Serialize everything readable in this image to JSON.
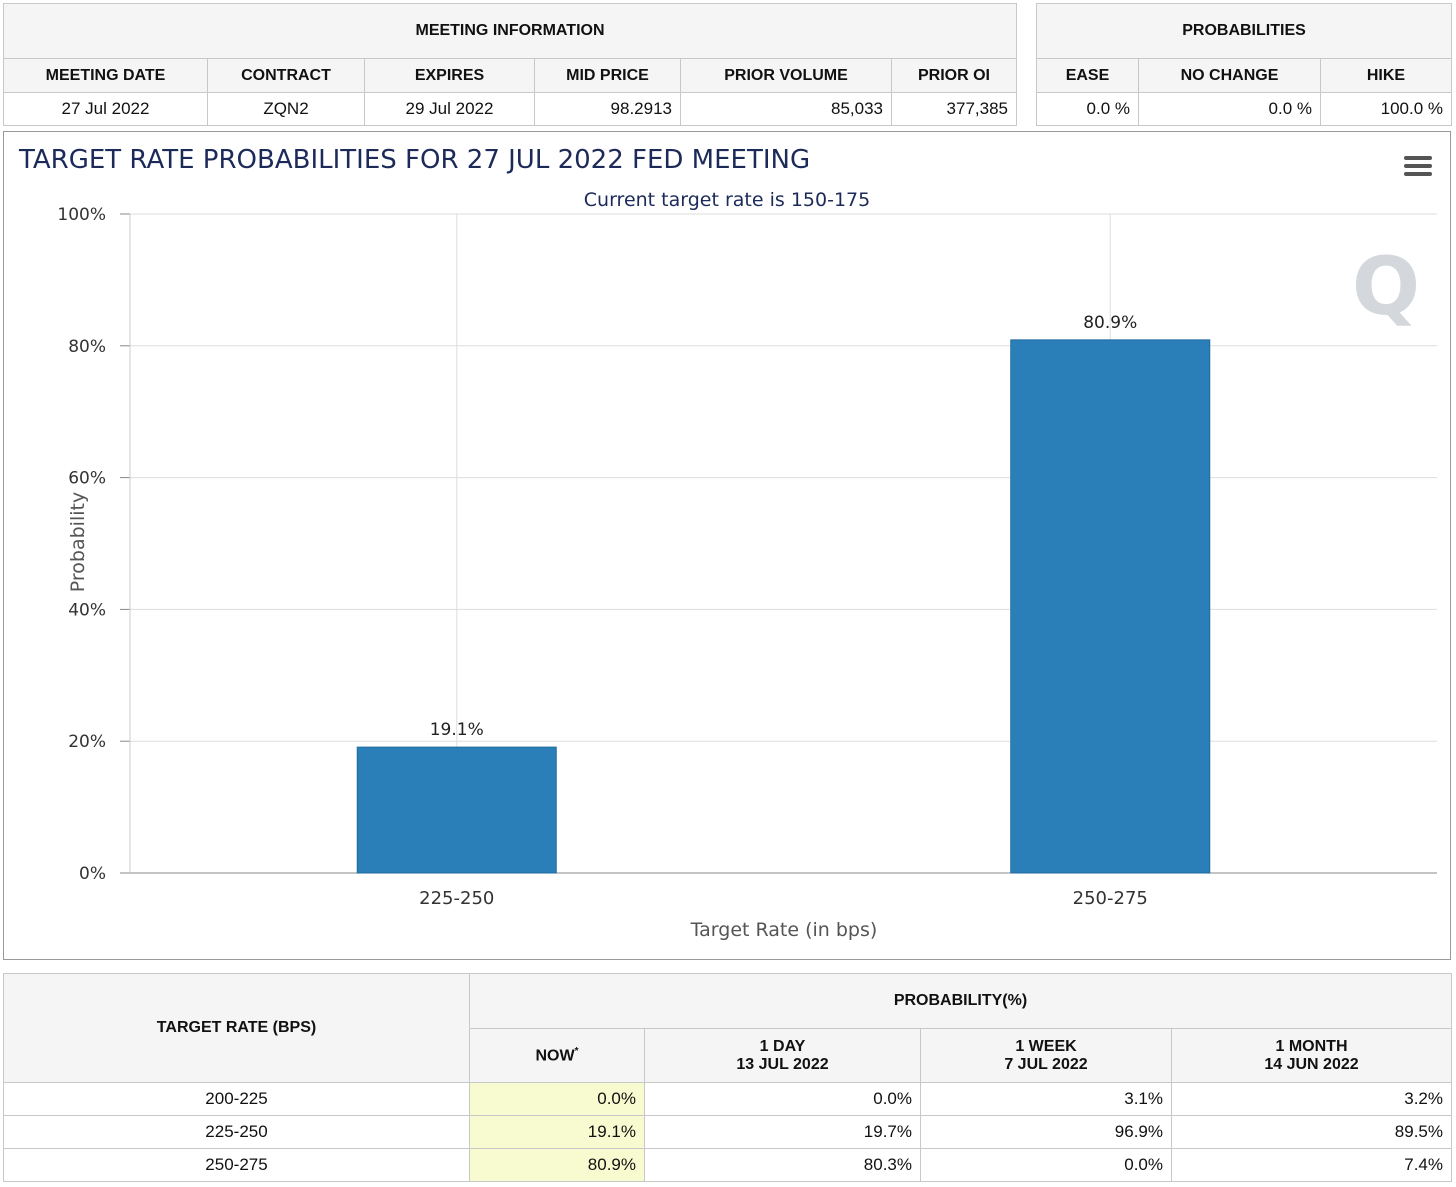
{
  "meeting_info": {
    "title": "MEETING INFORMATION",
    "headers": [
      "MEETING DATE",
      "CONTRACT",
      "EXPIRES",
      "MID PRICE",
      "PRIOR VOLUME",
      "PRIOR OI"
    ],
    "values": [
      "27 Jul 2022",
      "ZQN2",
      "29 Jul 2022",
      "98.2913",
      "85,033",
      "377,385"
    ]
  },
  "probabilities": {
    "title": "PROBABILITIES",
    "headers": [
      "EASE",
      "NO CHANGE",
      "HIKE"
    ],
    "values": [
      "0.0 %",
      "0.0 %",
      "100.0 %"
    ]
  },
  "chart_data": {
    "type": "bar",
    "title": "TARGET RATE PROBABILITIES FOR 27 JUL 2022 FED MEETING",
    "subtitle": "Current target rate is 150-175",
    "categories": [
      "225-250",
      "250-275"
    ],
    "values": [
      19.1,
      80.9
    ],
    "data_labels": [
      "19.1%",
      "80.9%"
    ],
    "xlabel": "Target Rate (in bps)",
    "ylabel": "Probability",
    "ylim": [
      0,
      100
    ],
    "yticks": [
      0,
      20,
      40,
      60,
      80,
      100
    ],
    "ytick_labels": [
      "0%",
      "20%",
      "40%",
      "60%",
      "80%",
      "100%"
    ],
    "grid": true,
    "bar_color": "#2a7fb8",
    "title_color": "#1c2a5a"
  },
  "history": {
    "rate_header": "TARGET RATE (BPS)",
    "prob_header": "PROBABILITY(%)",
    "columns": [
      {
        "line1": "NOW",
        "mark": "*"
      },
      {
        "line1": "1 DAY",
        "line2": "13 JUL 2022"
      },
      {
        "line1": "1 WEEK",
        "line2": "7 JUL 2022"
      },
      {
        "line1": "1 MONTH",
        "line2": "14 JUN 2022"
      }
    ],
    "rows": [
      {
        "rate": "200-225",
        "vals": [
          "0.0%",
          "0.0%",
          "3.1%",
          "3.2%"
        ]
      },
      {
        "rate": "225-250",
        "vals": [
          "19.1%",
          "19.7%",
          "96.9%",
          "89.5%"
        ]
      },
      {
        "rate": "250-275",
        "vals": [
          "80.9%",
          "80.3%",
          "0.0%",
          "7.4%"
        ]
      }
    ]
  }
}
